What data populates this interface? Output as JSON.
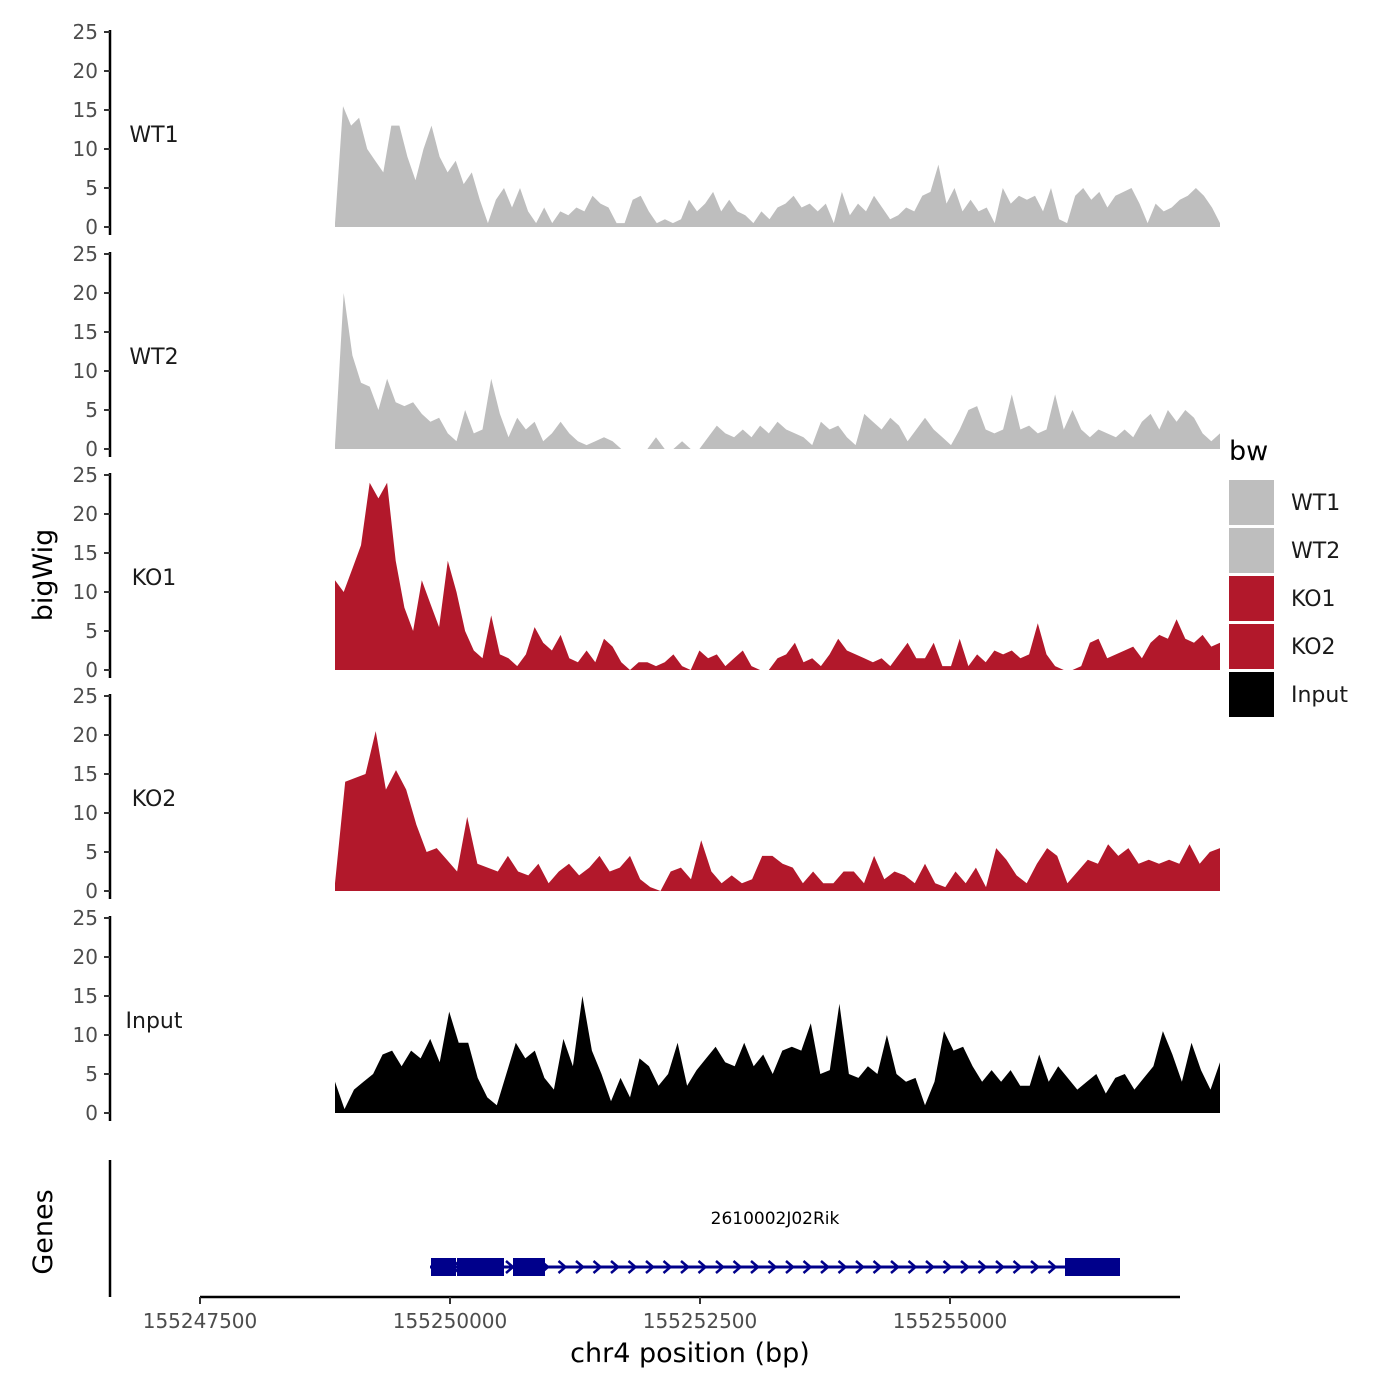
{
  "chart_data": {
    "type": "area",
    "title": "",
    "xlabel": "chr4 position (bp)",
    "ylabel": "bigWig",
    "gene_panel_label": "Genes",
    "legend_title": "bw",
    "legend_position": "right",
    "xlim": [
      155247500,
      155257300
    ],
    "x_ticks": [
      155247500,
      155250000,
      155252500,
      155255000
    ],
    "x_tick_labels": [
      "155247500",
      "155250000",
      "155252500",
      "155255000"
    ],
    "ylim": [
      0,
      25
    ],
    "y_ticks": [
      0,
      5,
      10,
      15,
      20,
      25
    ],
    "y_tick_labels": [
      "0",
      "5",
      "10",
      "15",
      "20",
      "25"
    ],
    "x_range": [
      155248850,
      155257700
    ],
    "series": [
      {
        "name": "WT1",
        "color": "#bebebe",
        "values": [
          0.5,
          15.5,
          13,
          14,
          10,
          8.5,
          7,
          13,
          13,
          9,
          6,
          10,
          13,
          9,
          7,
          8.5,
          5.5,
          7,
          3.5,
          0.5,
          3.5,
          5,
          2.5,
          5,
          2,
          0.5,
          2.5,
          0.5,
          2,
          1.5,
          2.5,
          2,
          4,
          3,
          2.5,
          0.5,
          0.5,
          3.5,
          4,
          2,
          0.5,
          1,
          0.5,
          1,
          3.5,
          2,
          3,
          4.5,
          2,
          3.5,
          2,
          1.5,
          0.5,
          2,
          1,
          2.5,
          3,
          4,
          2.5,
          3,
          2,
          3,
          0.5,
          4.5,
          1.5,
          3,
          2,
          4,
          2.5,
          1,
          1.5,
          2.5,
          2,
          4,
          4.5,
          8,
          3,
          5,
          2,
          3.5,
          2,
          2.5,
          0.5,
          5,
          3,
          4,
          3.5,
          4,
          2,
          5,
          1,
          0.5,
          4,
          5,
          3.5,
          4.5,
          2.5,
          4,
          4.5,
          5,
          3,
          0.5,
          3,
          2,
          2.5,
          3.5,
          4,
          5,
          4,
          2.5,
          0.5
        ]
      },
      {
        "name": "WT2",
        "color": "#bebebe",
        "values": [
          0.5,
          20,
          12,
          8.5,
          8,
          5,
          9,
          6,
          5.5,
          6,
          4.5,
          3.5,
          4,
          2,
          1,
          5,
          2,
          2.5,
          9,
          4.5,
          1.5,
          4,
          2.5,
          3.5,
          1,
          2,
          3.5,
          2,
          1,
          0.5,
          1,
          1.5,
          1,
          0,
          0,
          0,
          0,
          1.5,
          0,
          0,
          1,
          0,
          0,
          1.5,
          3,
          2,
          1.5,
          2.5,
          1.5,
          3,
          2,
          3.5,
          2.5,
          2,
          1.5,
          0.5,
          3.5,
          2.5,
          3,
          1.5,
          0.5,
          4.5,
          3.5,
          2.5,
          4,
          3,
          1,
          2.5,
          4,
          2.5,
          1.5,
          0.5,
          2.5,
          5,
          5.5,
          2.5,
          2,
          2.5,
          7,
          2.5,
          3,
          2,
          2.5,
          7,
          2.5,
          5,
          2.5,
          1.5,
          2.5,
          2,
          1.5,
          2.5,
          1.5,
          3.5,
          4.5,
          2.5,
          5,
          3.5,
          5,
          4,
          2,
          1,
          2
        ]
      },
      {
        "name": "KO1",
        "color": "#b2182b",
        "values": [
          11.5,
          10,
          13,
          16,
          24,
          22,
          24,
          14,
          8,
          5,
          11.5,
          8.5,
          5.5,
          14,
          10,
          5,
          2.5,
          1.5,
          7,
          2,
          1.5,
          0.5,
          2,
          5.5,
          3.5,
          2.5,
          4.5,
          1.5,
          1,
          2.5,
          1,
          4,
          3,
          1,
          0,
          1,
          1,
          0.5,
          1,
          2,
          0.5,
          0,
          2.5,
          1.5,
          2,
          0.5,
          1.5,
          2.5,
          0.5,
          0,
          0,
          1.5,
          2,
          3.5,
          1,
          1.5,
          0.5,
          2,
          4,
          2.5,
          2,
          1.5,
          1,
          1.5,
          0.5,
          2,
          3.5,
          1.5,
          1.5,
          3.5,
          0.5,
          0.5,
          4,
          0.5,
          2,
          1,
          2.5,
          2,
          2.5,
          1.5,
          2,
          6,
          2,
          0.5,
          0,
          0,
          0.5,
          3.5,
          4,
          1.5,
          2,
          2.5,
          3,
          1.5,
          3.5,
          4.5,
          4,
          6.5,
          4,
          3.5,
          4.5,
          3,
          3.5
        ]
      },
      {
        "name": "KO2",
        "color": "#b2182b",
        "values": [
          1,
          14,
          14.5,
          15,
          20.5,
          13,
          15.5,
          13,
          8.5,
          5,
          5.5,
          4,
          2.5,
          9.5,
          3.5,
          3,
          2.5,
          4.5,
          2.5,
          2,
          3.5,
          1,
          2.5,
          3.5,
          2,
          3,
          4.5,
          2.5,
          3,
          4.5,
          1.5,
          0.5,
          0,
          2.5,
          3,
          1.5,
          6.5,
          2.5,
          1,
          2,
          1,
          1.5,
          4.5,
          4.5,
          3.5,
          3,
          1,
          2.5,
          1,
          1,
          2.5,
          2.5,
          1,
          4.5,
          1.5,
          2.5,
          2,
          1,
          3.5,
          1,
          0.5,
          2.5,
          1,
          3,
          0.5,
          5.5,
          4,
          2,
          1,
          3.5,
          5.5,
          4.5,
          1,
          2.5,
          4,
          3.5,
          6,
          4.5,
          5.5,
          3.5,
          4,
          3.5,
          4,
          3.5,
          6,
          3.5,
          5,
          5.5
        ]
      },
      {
        "name": "Input",
        "color": "#000000",
        "values": [
          4,
          0.5,
          3,
          4,
          5,
          7.5,
          8,
          6,
          8,
          7,
          9.5,
          6.5,
          13,
          9,
          9,
          4.5,
          2,
          1,
          5,
          9,
          7,
          8,
          4.5,
          3,
          9.5,
          6,
          15,
          8,
          5,
          1.5,
          4.5,
          2,
          7,
          6,
          3.5,
          5,
          9,
          3.5,
          5.5,
          7,
          8.5,
          6.5,
          6,
          9,
          6,
          7.5,
          5,
          8,
          8.5,
          8,
          11.5,
          5,
          5.5,
          14,
          5,
          4.5,
          6,
          5,
          10,
          5,
          4,
          4.5,
          1,
          4,
          10.5,
          8,
          8.5,
          6,
          4,
          5.5,
          4,
          5.5,
          3.5,
          3.5,
          7.5,
          4,
          6,
          4.5,
          3,
          4,
          5,
          2.5,
          4.5,
          5,
          3,
          4.5,
          6,
          10.5,
          7.5,
          4,
          9,
          5.5,
          3,
          6.5
        ]
      }
    ],
    "gene": {
      "name": "2610002J02Rik",
      "color": "#00008b",
      "start": 155249800,
      "end": 155256700,
      "exons": [
        [
          155249810,
          155250060
        ],
        [
          155250070,
          155250540
        ],
        [
          155250630,
          155250950
        ],
        [
          155256150,
          155256700
        ]
      ]
    }
  }
}
